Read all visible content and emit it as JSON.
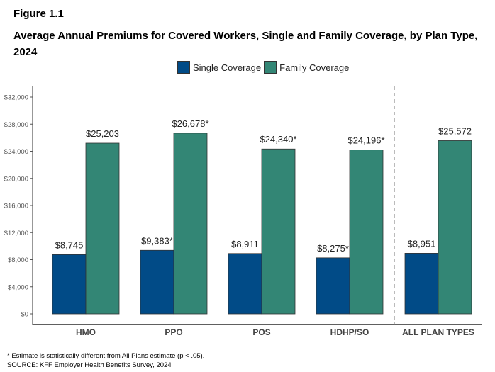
{
  "figure_label": "Figure 1.1",
  "chart_data": {
    "type": "bar",
    "title": "Average Annual Premiums for Covered Workers, Single and Family Coverage, by Plan Type, 2024",
    "categories": [
      "HMO",
      "PPO",
      "POS",
      "HDHP/SO",
      "ALL PLAN TYPES"
    ],
    "series": [
      {
        "name": "Single Coverage",
        "color": "#014B87",
        "values": [
          8745,
          9383,
          8911,
          8275,
          8951
        ],
        "labels": [
          "$8,745",
          "$9,383*",
          "$8,911",
          "$8,275*",
          "$8,951"
        ]
      },
      {
        "name": "Family Coverage",
        "color": "#338675",
        "values": [
          25203,
          26678,
          24340,
          24196,
          25572
        ],
        "labels": [
          "$25,203",
          "$26,678*",
          "$24,340*",
          "$24,196*",
          "$25,572"
        ]
      }
    ],
    "ylim": [
      0,
      32000
    ],
    "yticks": [
      0,
      4000,
      8000,
      12000,
      16000,
      20000,
      24000,
      28000,
      32000
    ],
    "ytick_labels": [
      "$0",
      "$4,000",
      "$8,000",
      "$12,000",
      "$16,000",
      "$20,000",
      "$24,000",
      "$28,000",
      "$32,000"
    ],
    "xlabel": "",
    "ylabel": "",
    "grid": false,
    "legend_position": "top",
    "separator": "dashed line before ALL PLAN TYPES"
  },
  "footnotes": [
    "* Estimate is statistically different from All Plans estimate (p < .05).",
    "SOURCE: KFF Employer Health Benefits Survey, 2024"
  ]
}
